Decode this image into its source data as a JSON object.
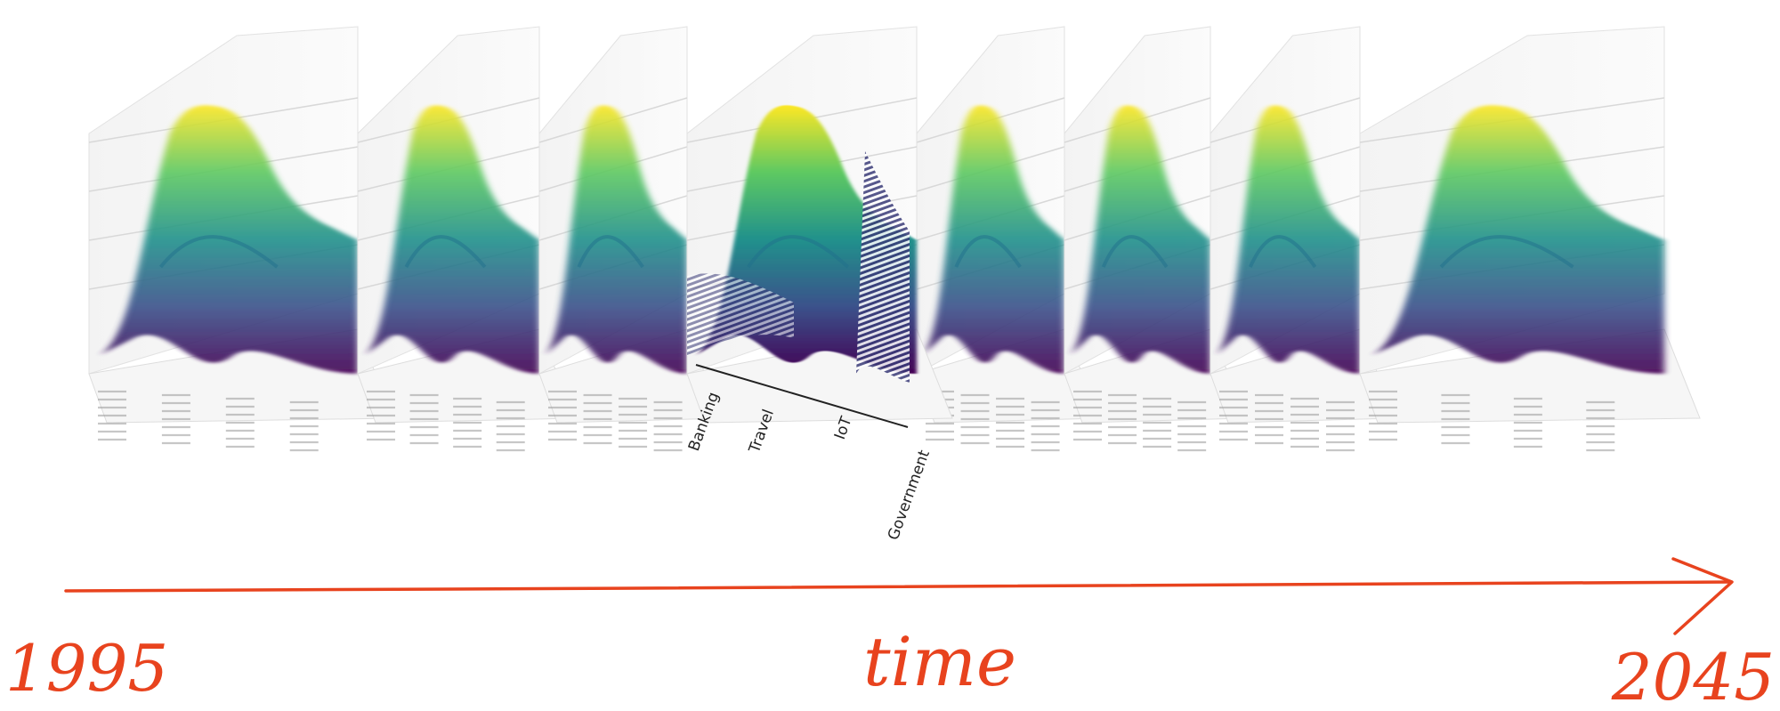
{
  "chart_data": {
    "type": "surface-sequence",
    "categories": [
      "Banking",
      "Travel",
      "IoT",
      "Government"
    ],
    "time_axis": {
      "label": "time",
      "start": "1995",
      "end": "2045"
    },
    "snapshot_count": 8,
    "focus_snapshot": 4,
    "colormap": "viridis",
    "grid": true
  },
  "colors": {
    "arrow": "#e8431e",
    "viridis_low": "#440154",
    "viridis_mid": "#21918c",
    "viridis_high": "#fde725"
  }
}
